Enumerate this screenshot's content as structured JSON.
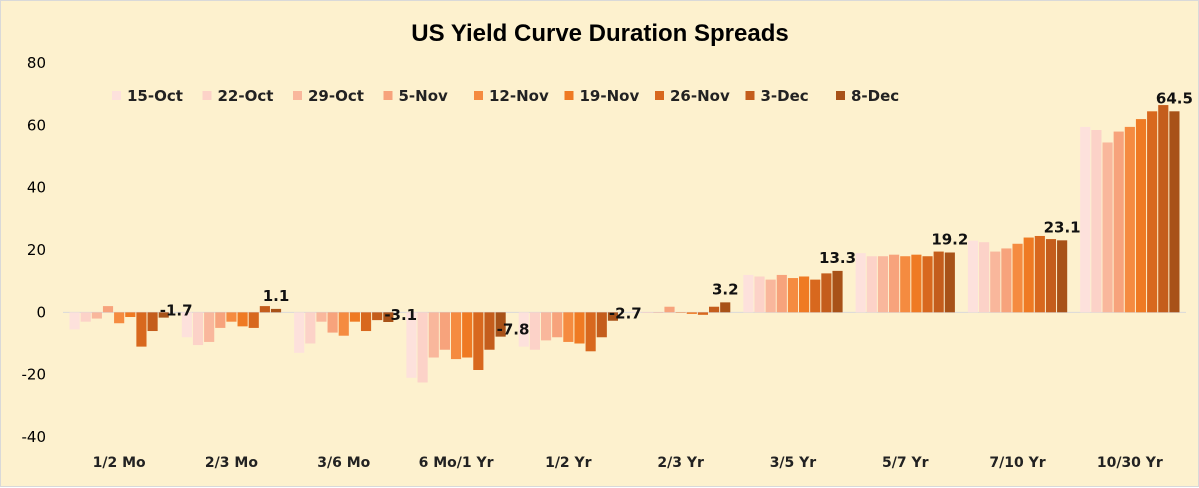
{
  "chart_data": {
    "type": "bar",
    "title": "US Yield Curve Duration Spreads",
    "xlabel": "",
    "ylabel": "",
    "ylim": [
      -40,
      80
    ],
    "yticks": [
      -40,
      -20,
      0,
      20,
      40,
      60,
      80
    ],
    "grid": false,
    "legend_position": "top-left",
    "categories": [
      "1/2 Mo",
      "2/3 Mo",
      "3/6 Mo",
      "6 Mo/1 Yr",
      "1/2 Yr",
      "2/3 Yr",
      "3/5 Yr",
      "5/7 Yr",
      "7/10 Yr",
      "10/30 Yr"
    ],
    "series": [
      {
        "name": "15-Oct",
        "color": "#fde1dc",
        "values": [
          -5.5,
          -8,
          -13,
          -21,
          -11,
          0.3,
          12,
          19,
          23,
          59.5
        ]
      },
      {
        "name": "22-Oct",
        "color": "#fcd2c8",
        "values": [
          -3,
          -10.5,
          -10,
          -22.5,
          -12,
          -0.2,
          11.5,
          18,
          22.5,
          58.5
        ]
      },
      {
        "name": "29-Oct",
        "color": "#f9b79c",
        "values": [
          -2,
          -9.5,
          -3,
          -14.5,
          -9,
          0,
          10.5,
          18,
          19.5,
          54.5
        ]
      },
      {
        "name": "5-Nov",
        "color": "#f7a37c",
        "values": [
          2,
          -5,
          -6.5,
          -12,
          -8,
          1.8,
          12,
          18.5,
          20.5,
          58
        ]
      },
      {
        "name": "12-Nov",
        "color": "#f58b40",
        "values": [
          -3.5,
          -3,
          -7.5,
          -15,
          -9.5,
          0,
          11,
          18,
          22,
          59.5
        ]
      },
      {
        "name": "19-Nov",
        "color": "#ef7a23",
        "values": [
          -1.5,
          -4.5,
          -3,
          -14.5,
          -10,
          -0.5,
          11.5,
          18.5,
          24,
          62
        ]
      },
      {
        "name": "26-Nov",
        "color": "#d8681e",
        "values": [
          -11,
          -5,
          -6,
          -18.5,
          -12.5,
          -0.8,
          10.5,
          18,
          24.5,
          64.5
        ]
      },
      {
        "name": "3-Dec",
        "color": "#c45d1c",
        "values": [
          -6,
          2,
          -2.5,
          -12,
          -8,
          1.8,
          12.5,
          19.5,
          23.5,
          66.5
        ]
      },
      {
        "name": "8-Dec",
        "color": "#a85218",
        "values": [
          -1.7,
          1.1,
          -3.1,
          -7.8,
          -2.7,
          3.2,
          13.3,
          19.2,
          23.1,
          64.5
        ]
      }
    ],
    "data_labels": [
      "-1.7",
      "1.1",
      "-3.1",
      "-7.8",
      "-2.7",
      "3.2",
      "13.3",
      "19.2",
      "23.1",
      "64.5"
    ]
  }
}
